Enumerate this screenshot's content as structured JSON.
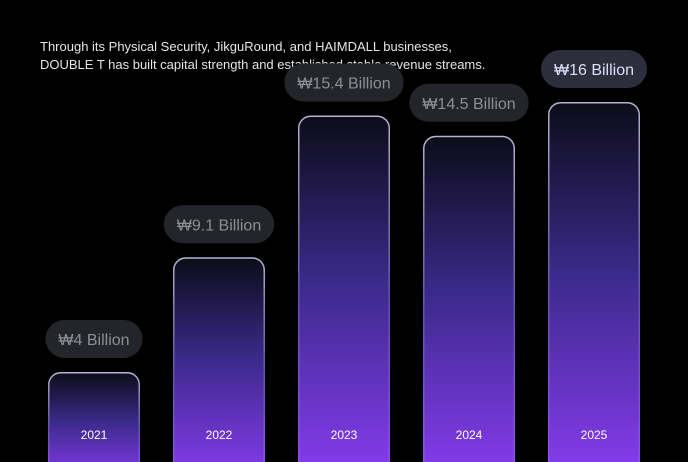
{
  "description": {
    "line1": "Through its Physical Security, JikguRound, and HAIMDALL businesses,",
    "line2": "DOUBLE T has built capital strength and established stable revenue streams."
  },
  "chart_data": {
    "type": "bar",
    "categories": [
      "2021",
      "2022",
      "2023",
      "2024",
      "2025"
    ],
    "values": [
      4,
      9.1,
      15.4,
      14.5,
      16
    ],
    "data_labels": [
      "₩4 Billion",
      "₩9.1 Billion",
      "₩15.4 Billion",
      "₩14.5 Billion",
      "₩16 Billion"
    ],
    "highlight_index": 4,
    "colors": {
      "bar_top": "#0c0c18",
      "bar_mid": "#3a2a8a",
      "bar_bottom": "#8a3cf2",
      "bar_edge": "#c9c6e6",
      "pill_bg": "#24242b",
      "pill_bg_highlight": "#2c2e3c",
      "label_text": "#8e8e99",
      "label_text_highlight": "#dcdff8"
    }
  }
}
